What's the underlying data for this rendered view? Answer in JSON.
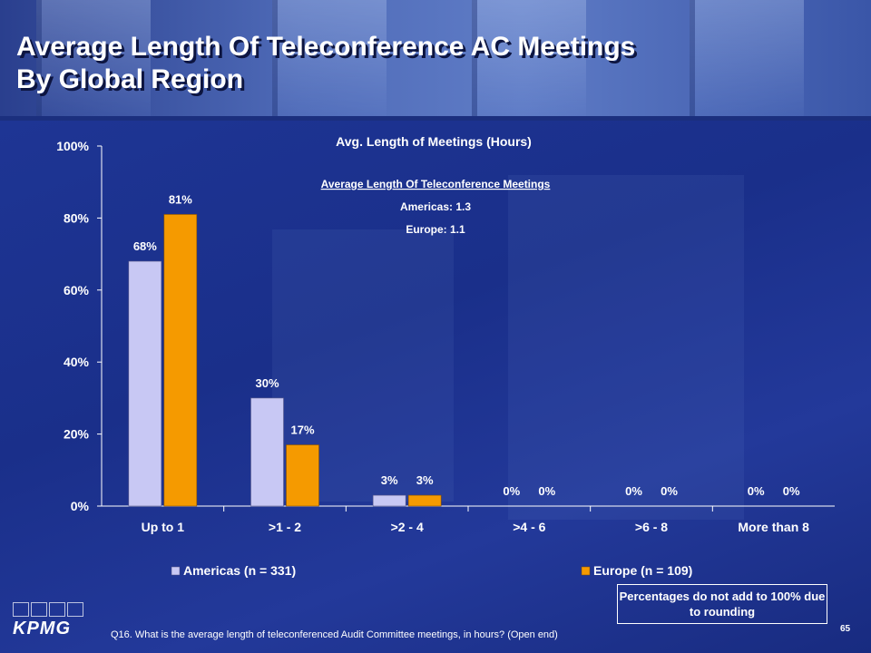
{
  "title_line1": "Average Length Of Teleconference AC Meetings",
  "title_line2": "By Global Region",
  "chart_data": {
    "type": "bar",
    "title": "Avg. Length of Meetings (Hours)",
    "categories": [
      "Up to 1",
      ">1 - 2",
      ">2 - 4",
      ">4 - 6",
      ">6 - 8",
      "More than 8"
    ],
    "series": [
      {
        "name": "Americas (n = 331)",
        "values": [
          68,
          30,
          3,
          0,
          0,
          0
        ],
        "labels": [
          "68%",
          "30%",
          "3%",
          "0%",
          "0%",
          "0%"
        ],
        "color": "#c8c8f4"
      },
      {
        "name": "Europe (n = 109)",
        "values": [
          81,
          17,
          3,
          0,
          0,
          0
        ],
        "labels": [
          "81%",
          "17%",
          "3%",
          "0%",
          "0%",
          "0%"
        ],
        "color": "#f59a00"
      }
    ],
    "ylim": [
      0,
      100
    ],
    "yticks": [
      "0%",
      "20%",
      "40%",
      "60%",
      "80%",
      "100%"
    ],
    "legend_position": "bottom",
    "annotation": {
      "heading": "Average Length Of Teleconference Meetings",
      "lines": [
        "Americas: 1.3",
        "Europe: 1.1"
      ]
    }
  },
  "note": "Percentages do not add to 100% due to rounding",
  "footnote": "Q16. What is the average length of teleconferenced Audit Committee meetings, in hours? (Open end)",
  "page_number": "65",
  "logo_text": "KPMG",
  "colors": {
    "background": "#1a2f8a",
    "americas": "#c8c8f4",
    "europe": "#f59a00",
    "axis_text": "#ffffff"
  }
}
